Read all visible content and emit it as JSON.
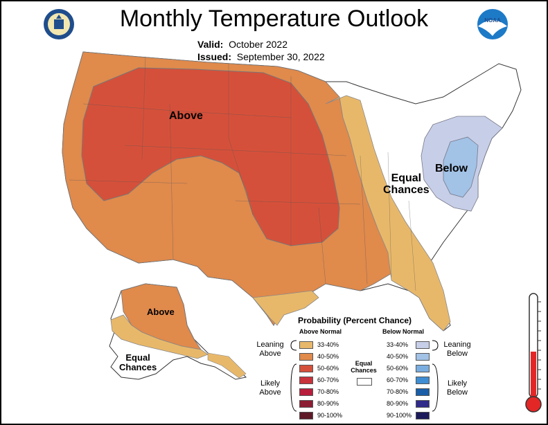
{
  "header": {
    "title": "Monthly Temperature Outlook",
    "valid_label": "Valid:",
    "valid_value": "October 2022",
    "issued_label": "Issued:",
    "issued_value": "September 30, 2022"
  },
  "logos": {
    "left": "department-of-commerce-seal",
    "right": "noaa-logo"
  },
  "map_labels": {
    "above_conus": "Above",
    "equal_chances_east_line1": "Equal",
    "equal_chances_east_line2": "Chances",
    "below": "Below",
    "above_alaska": "Above",
    "equal_chances_ak_line1": "Equal",
    "equal_chances_ak_line2": "Chances"
  },
  "legend": {
    "title": "Probability (Percent Chance)",
    "above_header": "Above Normal",
    "below_header": "Below Normal",
    "above_colors": [
      "#e8b86a",
      "#e08a4c",
      "#d5503a",
      "#c8323a",
      "#b81e3c",
      "#8c1e34",
      "#5e1a26"
    ],
    "below_colors": [
      "#c7cfe8",
      "#a2c2e6",
      "#7aaee0",
      "#3f8dd2",
      "#1a5ea8",
      "#302a8a",
      "#1c1a5a"
    ],
    "ranges": [
      "33-40%",
      "40-50%",
      "50-60%",
      "60-70%",
      "70-80%",
      "80-90%",
      "90-100%"
    ],
    "leaning_above_line1": "Leaning",
    "leaning_above_line2": "Above",
    "likely_above_line1": "Likely",
    "likely_above_line2": "Above",
    "leaning_below_line1": "Leaning",
    "leaning_below_line2": "Below",
    "likely_below_line1": "Likely",
    "likely_below_line2": "Below",
    "equal_line1": "Equal",
    "equal_line2": "Chances"
  },
  "colors": {
    "above_40_50": "#e08a4c",
    "above_50_60": "#d5503a",
    "above_33_40": "#e8b86a",
    "below_33_40": "#c7cfe8",
    "below_40_50": "#a2c2e6",
    "thermometer_red": "#e32626"
  }
}
